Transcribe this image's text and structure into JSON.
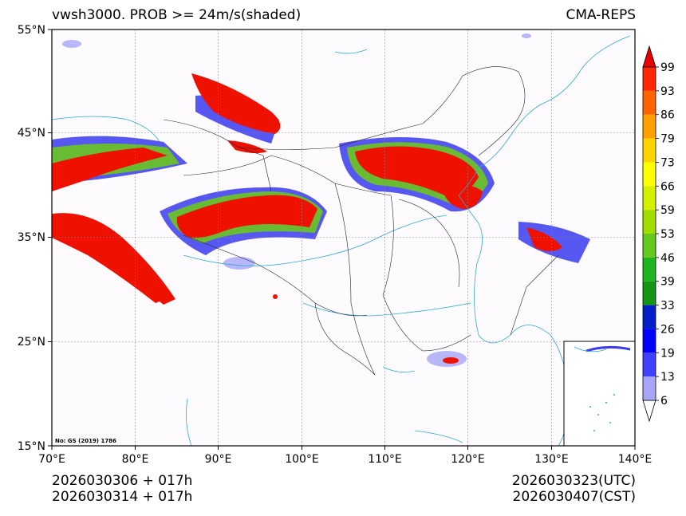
{
  "title_left": "vwsh3000. PROB >= 24m/s(shaded)",
  "title_right": "CMA-REPS",
  "lat_labels": [
    "55°N",
    "45°N",
    "35°N",
    "25°N",
    "15°N"
  ],
  "lon_labels": [
    "70°E",
    "80°E",
    "90°E",
    "100°E",
    "110°E",
    "120°E",
    "130°E",
    "140°E"
  ],
  "colorbar": {
    "labels": [
      "6",
      "13",
      "19",
      "26",
      "33",
      "39",
      "46",
      "53",
      "59",
      "66",
      "73",
      "79",
      "86",
      "93",
      "99"
    ],
    "colors": [
      "#ffffff",
      "#a6a6f7",
      "#4040ff",
      "#0000ff",
      "#0020c8",
      "#149614",
      "#1eb41e",
      "#64c81e",
      "#a0dc00",
      "#d2f000",
      "#ffff00",
      "#ffd200",
      "#ffa000",
      "#ff6400",
      "#ff2800",
      "#e60000"
    ]
  },
  "footer": {
    "init_utc": "2026030306  +  017h",
    "init_cst": "2026030314  +  017h",
    "valid_utc": "2026030323(UTC)",
    "valid_cst": "2026030407(CST)"
  },
  "map_note": "No: GS (2019) 1786"
}
